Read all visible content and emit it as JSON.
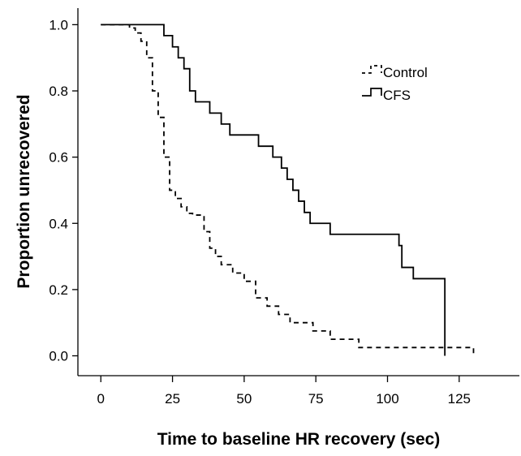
{
  "chart_data": {
    "type": "line",
    "title": "",
    "xlabel": "Time to baseline HR recovery (sec)",
    "ylabel": "Proportion unrecovered",
    "xlim": [
      -8,
      146
    ],
    "ylim": [
      -0.06,
      1.05
    ],
    "xticks": [
      0,
      25,
      50,
      75,
      100,
      125
    ],
    "yticks": [
      0.0,
      0.2,
      0.4,
      0.6,
      0.8,
      1.0
    ],
    "xtick_labels": [
      "0",
      "25",
      "50",
      "75",
      "100",
      "125"
    ],
    "ytick_labels": [
      "0.0",
      "0.2",
      "0.4",
      "0.6",
      "0.8",
      "1.0"
    ],
    "grid": false,
    "legend_position": "top-right",
    "series": [
      {
        "name": "Control",
        "style": "dashed",
        "color": "#000000",
        "x": [
          0,
          10,
          12,
          14,
          16,
          18,
          20,
          22,
          24,
          26,
          28,
          30,
          32,
          36,
          38,
          40,
          42,
          46,
          50,
          54,
          58,
          62,
          66,
          70,
          74,
          80,
          90,
          130
        ],
        "y": [
          1.0,
          0.99,
          0.975,
          0.95,
          0.9,
          0.8,
          0.72,
          0.6,
          0.5,
          0.475,
          0.45,
          0.43,
          0.425,
          0.375,
          0.325,
          0.3,
          0.275,
          0.25,
          0.225,
          0.175,
          0.15,
          0.125,
          0.1,
          0.1,
          0.075,
          0.05,
          0.025,
          0.0
        ]
      },
      {
        "name": "CFS",
        "style": "solid",
        "color": "#000000",
        "x": [
          0,
          22,
          25,
          27,
          29,
          31,
          33,
          38,
          42,
          45,
          55,
          60,
          63,
          65,
          67,
          69,
          71,
          73,
          75,
          80,
          104,
          105,
          109,
          120,
          120
        ],
        "y": [
          1.0,
          0.967,
          0.933,
          0.9,
          0.867,
          0.8,
          0.767,
          0.733,
          0.7,
          0.667,
          0.633,
          0.6,
          0.567,
          0.533,
          0.5,
          0.467,
          0.433,
          0.4,
          0.4,
          0.367,
          0.333,
          0.267,
          0.233,
          0.233,
          0.0
        ]
      }
    ]
  }
}
